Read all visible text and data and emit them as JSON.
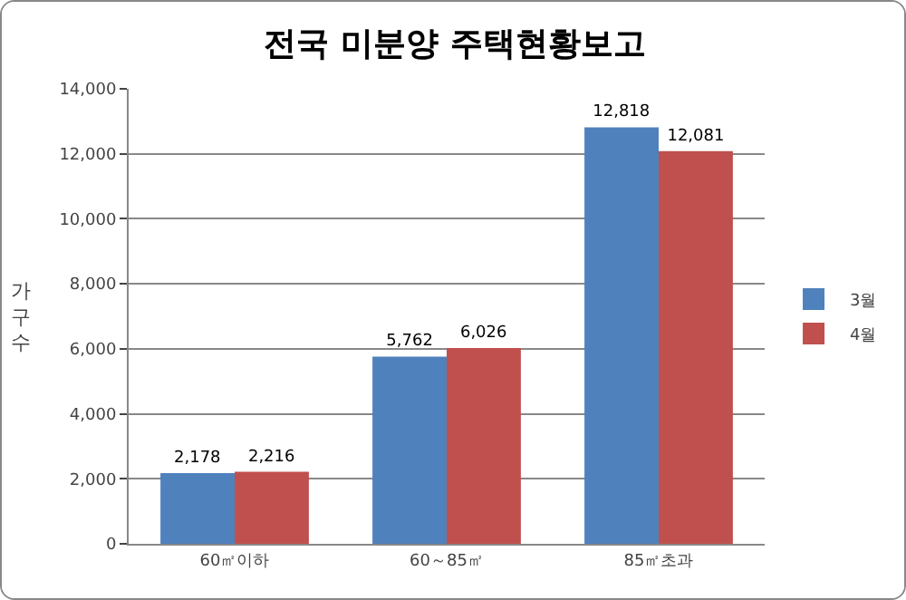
{
  "chart_data": {
    "type": "bar",
    "title": "전국 미분양 주택현황보고",
    "ylabel": "가구수",
    "categories": [
      "60㎡이하",
      "60～85㎡",
      "85㎡초과"
    ],
    "series": [
      {
        "name": "3월",
        "color": "#4f81bd",
        "values": [
          2178,
          5762,
          12818
        ],
        "value_labels": [
          "2,178",
          "5,762",
          "12,818"
        ]
      },
      {
        "name": "4월",
        "color": "#c0504d",
        "values": [
          2216,
          6026,
          12081
        ],
        "value_labels": [
          "2,216",
          "6,026",
          "12,081"
        ]
      }
    ],
    "ylim": [
      0,
      14000
    ],
    "yticks": [
      {
        "value": 0,
        "label": "0"
      },
      {
        "value": 2000,
        "label": "2,000"
      },
      {
        "value": 4000,
        "label": "4,000"
      },
      {
        "value": 6000,
        "label": "6,000"
      },
      {
        "value": 8000,
        "label": "8,000"
      },
      {
        "value": 10000,
        "label": "10,000"
      },
      {
        "value": 12000,
        "label": "12,000"
      },
      {
        "value": 14000,
        "label": "14,000"
      }
    ],
    "grid": "y",
    "legend": "right"
  }
}
